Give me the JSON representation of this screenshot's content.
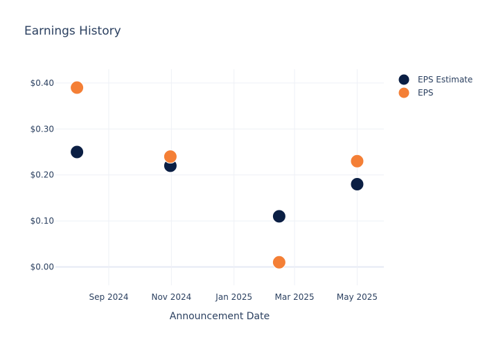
{
  "chart_data": {
    "type": "scatter",
    "title": "Earnings History",
    "xlabel": "Announcement Date",
    "ylabel": "",
    "x_ticks": [
      "Sep 2024",
      "Nov 2024",
      "Jan 2025",
      "Mar 2025",
      "May 2025"
    ],
    "x_tick_dates": [
      "2024-09-01",
      "2024-11-01",
      "2025-01-01",
      "2025-03-01",
      "2025-05-01"
    ],
    "x_range": [
      "2024-07-11",
      "2025-05-27"
    ],
    "y_ticks": [
      "$0.00",
      "$0.10",
      "$0.20",
      "$0.30",
      "$0.40"
    ],
    "y_tick_values": [
      0,
      0.1,
      0.2,
      0.3,
      0.4
    ],
    "ylim": [
      -0.04,
      0.43
    ],
    "grid": true,
    "legend_position": "top-right",
    "x": [
      "2024-08-01",
      "2024-10-31",
      "2025-02-14",
      "2025-05-01"
    ],
    "series": [
      {
        "name": "EPS Estimate",
        "color": "#0b1f44",
        "values": [
          0.25,
          0.22,
          0.11,
          0.18
        ]
      },
      {
        "name": "EPS",
        "color": "#f47f36",
        "values": [
          0.39,
          0.24,
          0.01,
          0.23
        ]
      }
    ]
  }
}
